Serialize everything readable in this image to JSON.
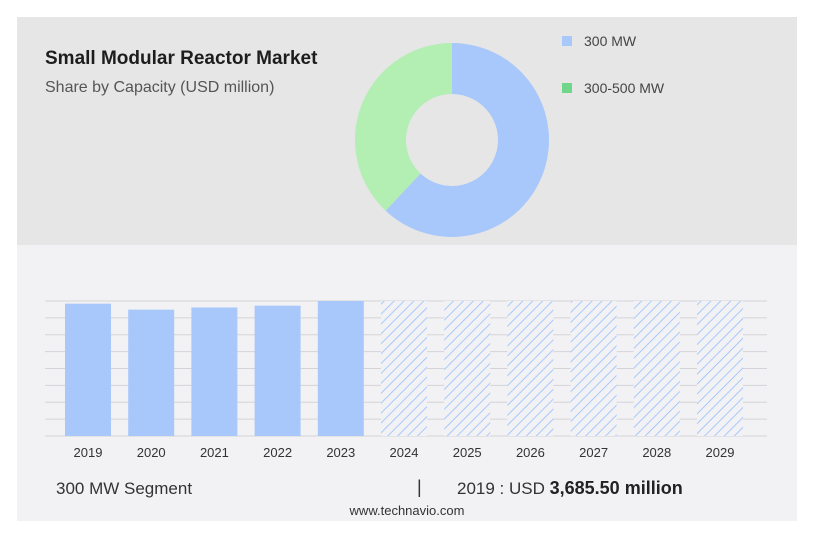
{
  "header": {
    "title": "Small Modular Reactor Market",
    "subtitle": "Share by Capacity (USD million)"
  },
  "footer": {
    "segment_label": "300 MW Segment",
    "separator": "|",
    "stat_prefix": "2019 : USD",
    "stat_value": "3,685.50 million",
    "source": "www.technavio.com"
  },
  "chart_data": [
    {
      "type": "pie",
      "donut": true,
      "legend_placement": "top-right",
      "slices": [
        {
          "label": "300 MW",
          "share": 0.62,
          "color": "#a8c8fb"
        },
        {
          "label": "300-500 MW",
          "share": 0.38,
          "color": "#b3eeb3"
        }
      ]
    },
    {
      "type": "bar",
      "categories": [
        "2019",
        "2020",
        "2021",
        "2022",
        "2023",
        "2024",
        "2025",
        "2026",
        "2027",
        "2028",
        "2029"
      ],
      "values": [
        3685.5,
        3520,
        3580,
        3630,
        3760,
        null,
        null,
        null,
        null,
        null,
        null
      ],
      "forecast_categories": [
        "2024",
        "2025",
        "2026",
        "2027",
        "2028",
        "2029"
      ],
      "ylim": [
        0,
        3760
      ],
      "grid": true,
      "bar_color": "#a8c8fb",
      "forecast_style": "hatched"
    }
  ]
}
